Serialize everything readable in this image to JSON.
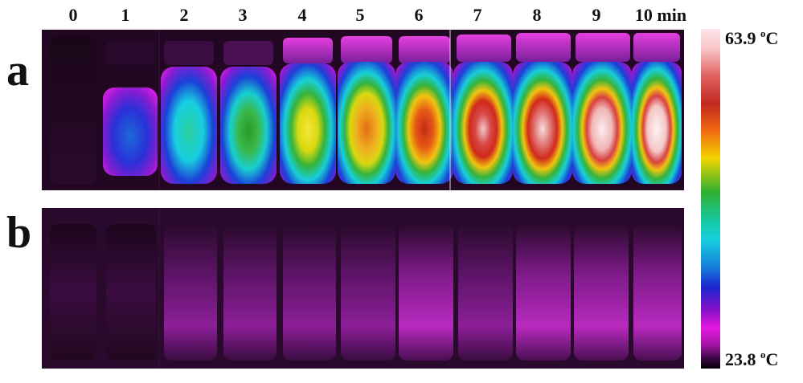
{
  "time_labels": [
    "0",
    "1",
    "2",
    "3",
    "4",
    "5",
    "6",
    "7",
    "8",
    "9",
    "10 min"
  ],
  "panels": {
    "a": "a",
    "b": "b"
  },
  "colorbar": {
    "max_value": "63.9",
    "min_value": "23.8",
    "unit_superscript": "o",
    "unit_letter": "C"
  },
  "colors": {
    "background": "#1e0820",
    "cold": "#050006",
    "hot": "#fde4ea"
  }
}
